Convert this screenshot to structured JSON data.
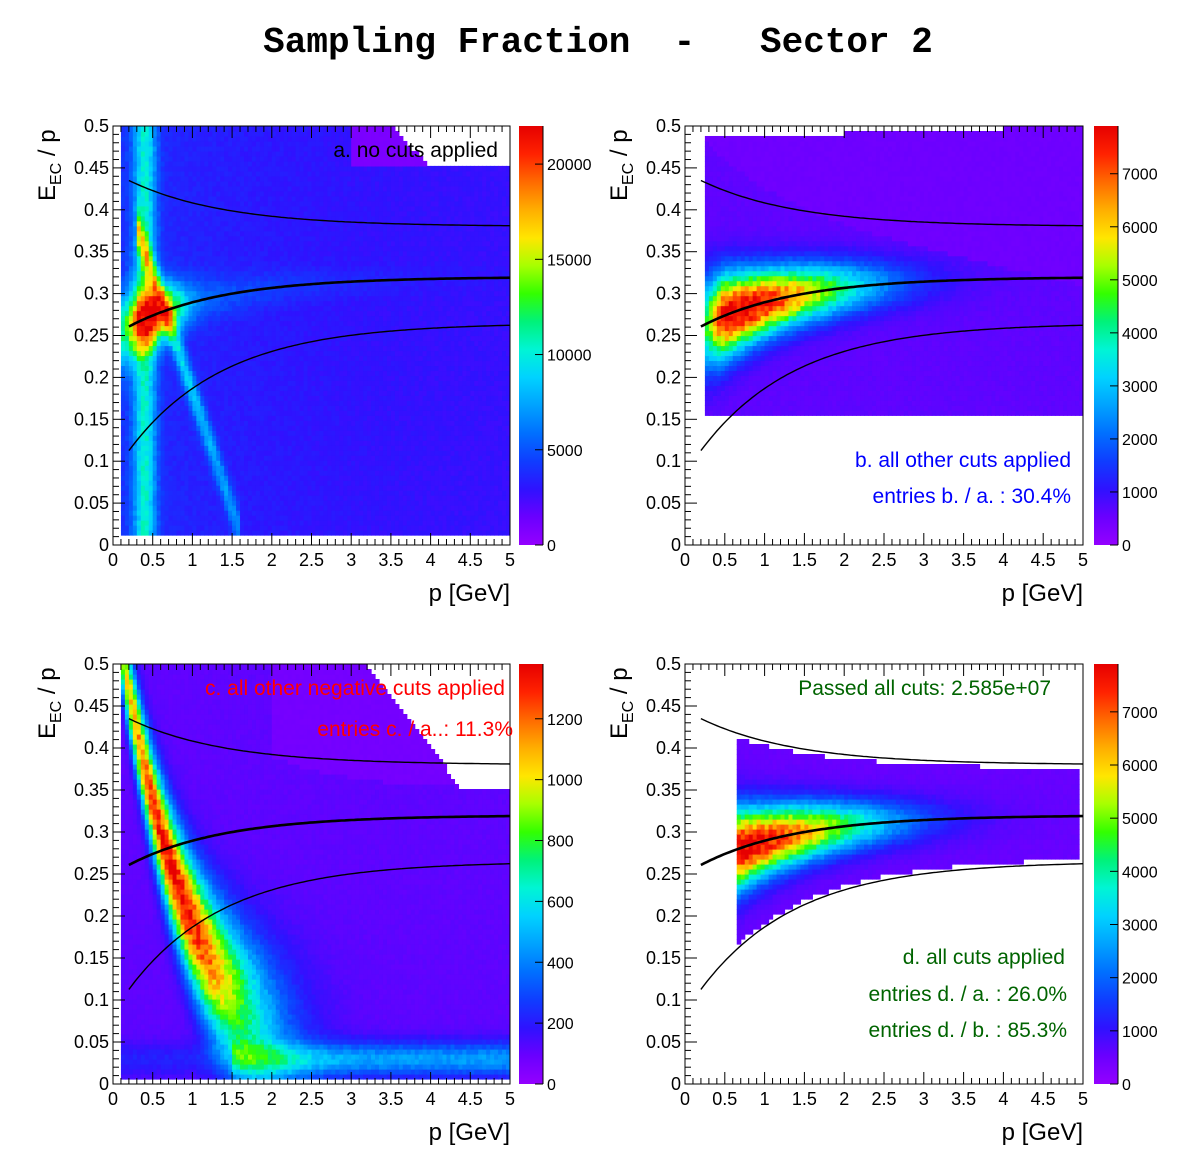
{
  "title": "Sampling Fraction  -   Sector 2",
  "colors": {
    "palette": [
      "#9400ff",
      "#6a00ff",
      "#2f12ff",
      "#0f3dff",
      "#0070ff",
      "#00a2ff",
      "#00d2ff",
      "#00f5d4",
      "#00f27a",
      "#33ff00",
      "#a8ff00",
      "#ffe600",
      "#ffae00",
      "#ff6a00",
      "#ff2200",
      "#e60000"
    ],
    "curve": "#000000"
  },
  "chart_data": [
    {
      "id": "a",
      "type": "heatmap",
      "xlabel": "p  [GeV]",
      "ylabel": "E_EC / p",
      "ylabel_main": "E",
      "ylabel_sub": "EC",
      "ylabel_rest": " / p",
      "xlim": [
        0,
        5
      ],
      "ylim": [
        0,
        0.5
      ],
      "xticks": [
        "0",
        "0.5",
        "1",
        "1.5",
        "2",
        "2.5",
        "3",
        "3.5",
        "4",
        "4.5",
        "5"
      ],
      "yticks": [
        "0",
        "0.05",
        "0.1",
        "0.15",
        "0.2",
        "0.25",
        "0.3",
        "0.35",
        "0.4",
        "0.45",
        "0.5"
      ],
      "zmax": 22000,
      "colorbar_ticks": [
        {
          "v": 0,
          "label": "0"
        },
        {
          "v": 5000,
          "label": "5000"
        },
        {
          "v": 10000,
          "label": "10000"
        },
        {
          "v": 15000,
          "label": "15000"
        },
        {
          "v": 20000,
          "label": "20000"
        }
      ],
      "annotations": [
        {
          "text": "a. no cuts applied",
          "color": "#000000"
        }
      ],
      "peak": {
        "p": 0.55,
        "ratio": 0.29
      }
    },
    {
      "id": "b",
      "type": "heatmap",
      "xlabel": "p  [GeV]",
      "ylabel": "E_EC / p",
      "ylabel_main": "E",
      "ylabel_sub": "EC",
      "ylabel_rest": " / p",
      "xlim": [
        0,
        5
      ],
      "ylim": [
        0,
        0.5
      ],
      "xticks": [
        "0",
        "0.5",
        "1",
        "1.5",
        "2",
        "2.5",
        "3",
        "3.5",
        "4",
        "4.5",
        "5"
      ],
      "yticks": [
        "0",
        "0.05",
        "0.1",
        "0.15",
        "0.2",
        "0.25",
        "0.3",
        "0.35",
        "0.4",
        "0.45",
        "0.5"
      ],
      "zmax": 7900,
      "colorbar_ticks": [
        {
          "v": 0,
          "label": "0"
        },
        {
          "v": 1000,
          "label": "1000"
        },
        {
          "v": 2000,
          "label": "2000"
        },
        {
          "v": 3000,
          "label": "3000"
        },
        {
          "v": 4000,
          "label": "4000"
        },
        {
          "v": 5000,
          "label": "5000"
        },
        {
          "v": 6000,
          "label": "6000"
        },
        {
          "v": 7000,
          "label": "7000"
        }
      ],
      "annotations": [
        {
          "text": "b. all other cuts applied",
          "color": "#0000ff"
        },
        {
          "text": "entries b. / a. : 30.4%",
          "color": "#0000ff"
        }
      ],
      "peak": {
        "p": 0.6,
        "ratio": 0.285
      }
    },
    {
      "id": "c",
      "type": "heatmap",
      "xlabel": "p  [GeV]",
      "ylabel": "E_EC / p",
      "ylabel_main": "E",
      "ylabel_sub": "EC",
      "ylabel_rest": " / p",
      "xlim": [
        0,
        5
      ],
      "ylim": [
        0,
        0.5
      ],
      "xticks": [
        "0",
        "0.5",
        "1",
        "1.5",
        "2",
        "2.5",
        "3",
        "3.5",
        "4",
        "4.5",
        "5"
      ],
      "yticks": [
        "0",
        "0.05",
        "0.1",
        "0.15",
        "0.2",
        "0.25",
        "0.3",
        "0.35",
        "0.4",
        "0.45",
        "0.5"
      ],
      "zmax": 1380,
      "colorbar_ticks": [
        {
          "v": 0,
          "label": "0"
        },
        {
          "v": 200,
          "label": "200"
        },
        {
          "v": 400,
          "label": "400"
        },
        {
          "v": 600,
          "label": "600"
        },
        {
          "v": 800,
          "label": "800"
        },
        {
          "v": 1000,
          "label": "1000"
        },
        {
          "v": 1200,
          "label": "1200"
        }
      ],
      "annotations": [
        {
          "text": "c. all other negative cuts applied",
          "color": "#ff0000"
        },
        {
          "text": "entries c. / a..: 11.3%",
          "color": "#ff0000"
        }
      ],
      "peak": {
        "p": 0.7,
        "ratio": 0.24
      }
    },
    {
      "id": "d",
      "type": "heatmap",
      "xlabel": "p  [GeV]",
      "ylabel": "E_EC / p",
      "ylabel_main": "E",
      "ylabel_sub": "EC",
      "ylabel_rest": " / p",
      "xlim": [
        0,
        5
      ],
      "ylim": [
        0,
        0.5
      ],
      "xticks": [
        "0",
        "0.5",
        "1",
        "1.5",
        "2",
        "2.5",
        "3",
        "3.5",
        "4",
        "4.5",
        "5"
      ],
      "yticks": [
        "0",
        "0.05",
        "0.1",
        "0.15",
        "0.2",
        "0.25",
        "0.3",
        "0.35",
        "0.4",
        "0.45",
        "0.5"
      ],
      "zmax": 7900,
      "colorbar_ticks": [
        {
          "v": 0,
          "label": "0"
        },
        {
          "v": 1000,
          "label": "1000"
        },
        {
          "v": 2000,
          "label": "2000"
        },
        {
          "v": 3000,
          "label": "3000"
        },
        {
          "v": 4000,
          "label": "4000"
        },
        {
          "v": 5000,
          "label": "5000"
        },
        {
          "v": 6000,
          "label": "6000"
        },
        {
          "v": 7000,
          "label": "7000"
        }
      ],
      "annotations": [
        {
          "text": "Passed all cuts: 2.585e+07",
          "color": "#006400"
        },
        {
          "text": "d. all cuts applied",
          "color": "#006400"
        },
        {
          "text": "entries d. / a. : 26.0%",
          "color": "#006400"
        },
        {
          "text": "entries d. / b. : 85.3%",
          "color": "#006400"
        }
      ],
      "peak": {
        "p": 0.65,
        "ratio": 0.285
      }
    }
  ]
}
